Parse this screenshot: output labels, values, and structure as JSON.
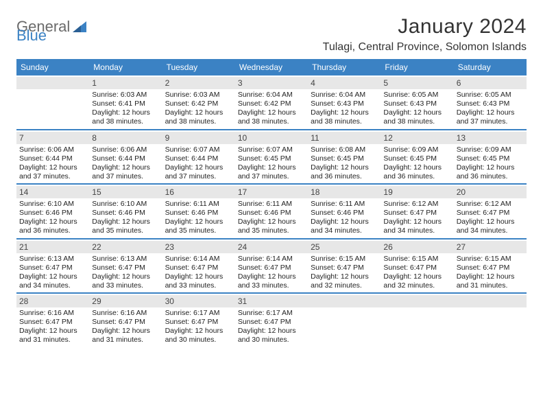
{
  "branding": {
    "logo_word1": "General",
    "logo_word2": "Blue",
    "logo_color_gray": "#6a6a6a",
    "logo_color_blue": "#3b82c4"
  },
  "title": "January 2024",
  "location": "Tulagi, Central Province, Solomon Islands",
  "colors": {
    "header_bg": "#3b82c4",
    "header_text": "#ffffff",
    "daynum_bg": "#e7e7e7",
    "row_border": "#3b82c4",
    "page_bg": "#ffffff",
    "body_text": "#222222"
  },
  "typography": {
    "title_fontsize": 30,
    "location_fontsize": 16,
    "weekday_fontsize": 12,
    "daynum_fontsize": 12,
    "cell_fontsize": 10.5
  },
  "weekday_labels": [
    "Sunday",
    "Monday",
    "Tuesday",
    "Wednesday",
    "Thursday",
    "Friday",
    "Saturday"
  ],
  "weeks": [
    [
      {
        "day": "",
        "sunrise": "",
        "sunset": "",
        "daylight1": "",
        "daylight2": ""
      },
      {
        "day": "1",
        "sunrise": "Sunrise: 6:03 AM",
        "sunset": "Sunset: 6:41 PM",
        "daylight1": "Daylight: 12 hours",
        "daylight2": "and 38 minutes."
      },
      {
        "day": "2",
        "sunrise": "Sunrise: 6:03 AM",
        "sunset": "Sunset: 6:42 PM",
        "daylight1": "Daylight: 12 hours",
        "daylight2": "and 38 minutes."
      },
      {
        "day": "3",
        "sunrise": "Sunrise: 6:04 AM",
        "sunset": "Sunset: 6:42 PM",
        "daylight1": "Daylight: 12 hours",
        "daylight2": "and 38 minutes."
      },
      {
        "day": "4",
        "sunrise": "Sunrise: 6:04 AM",
        "sunset": "Sunset: 6:43 PM",
        "daylight1": "Daylight: 12 hours",
        "daylight2": "and 38 minutes."
      },
      {
        "day": "5",
        "sunrise": "Sunrise: 6:05 AM",
        "sunset": "Sunset: 6:43 PM",
        "daylight1": "Daylight: 12 hours",
        "daylight2": "and 38 minutes."
      },
      {
        "day": "6",
        "sunrise": "Sunrise: 6:05 AM",
        "sunset": "Sunset: 6:43 PM",
        "daylight1": "Daylight: 12 hours",
        "daylight2": "and 37 minutes."
      }
    ],
    [
      {
        "day": "7",
        "sunrise": "Sunrise: 6:06 AM",
        "sunset": "Sunset: 6:44 PM",
        "daylight1": "Daylight: 12 hours",
        "daylight2": "and 37 minutes."
      },
      {
        "day": "8",
        "sunrise": "Sunrise: 6:06 AM",
        "sunset": "Sunset: 6:44 PM",
        "daylight1": "Daylight: 12 hours",
        "daylight2": "and 37 minutes."
      },
      {
        "day": "9",
        "sunrise": "Sunrise: 6:07 AM",
        "sunset": "Sunset: 6:44 PM",
        "daylight1": "Daylight: 12 hours",
        "daylight2": "and 37 minutes."
      },
      {
        "day": "10",
        "sunrise": "Sunrise: 6:07 AM",
        "sunset": "Sunset: 6:45 PM",
        "daylight1": "Daylight: 12 hours",
        "daylight2": "and 37 minutes."
      },
      {
        "day": "11",
        "sunrise": "Sunrise: 6:08 AM",
        "sunset": "Sunset: 6:45 PM",
        "daylight1": "Daylight: 12 hours",
        "daylight2": "and 36 minutes."
      },
      {
        "day": "12",
        "sunrise": "Sunrise: 6:09 AM",
        "sunset": "Sunset: 6:45 PM",
        "daylight1": "Daylight: 12 hours",
        "daylight2": "and 36 minutes."
      },
      {
        "day": "13",
        "sunrise": "Sunrise: 6:09 AM",
        "sunset": "Sunset: 6:45 PM",
        "daylight1": "Daylight: 12 hours",
        "daylight2": "and 36 minutes."
      }
    ],
    [
      {
        "day": "14",
        "sunrise": "Sunrise: 6:10 AM",
        "sunset": "Sunset: 6:46 PM",
        "daylight1": "Daylight: 12 hours",
        "daylight2": "and 36 minutes."
      },
      {
        "day": "15",
        "sunrise": "Sunrise: 6:10 AM",
        "sunset": "Sunset: 6:46 PM",
        "daylight1": "Daylight: 12 hours",
        "daylight2": "and 35 minutes."
      },
      {
        "day": "16",
        "sunrise": "Sunrise: 6:11 AM",
        "sunset": "Sunset: 6:46 PM",
        "daylight1": "Daylight: 12 hours",
        "daylight2": "and 35 minutes."
      },
      {
        "day": "17",
        "sunrise": "Sunrise: 6:11 AM",
        "sunset": "Sunset: 6:46 PM",
        "daylight1": "Daylight: 12 hours",
        "daylight2": "and 35 minutes."
      },
      {
        "day": "18",
        "sunrise": "Sunrise: 6:11 AM",
        "sunset": "Sunset: 6:46 PM",
        "daylight1": "Daylight: 12 hours",
        "daylight2": "and 34 minutes."
      },
      {
        "day": "19",
        "sunrise": "Sunrise: 6:12 AM",
        "sunset": "Sunset: 6:47 PM",
        "daylight1": "Daylight: 12 hours",
        "daylight2": "and 34 minutes."
      },
      {
        "day": "20",
        "sunrise": "Sunrise: 6:12 AM",
        "sunset": "Sunset: 6:47 PM",
        "daylight1": "Daylight: 12 hours",
        "daylight2": "and 34 minutes."
      }
    ],
    [
      {
        "day": "21",
        "sunrise": "Sunrise: 6:13 AM",
        "sunset": "Sunset: 6:47 PM",
        "daylight1": "Daylight: 12 hours",
        "daylight2": "and 34 minutes."
      },
      {
        "day": "22",
        "sunrise": "Sunrise: 6:13 AM",
        "sunset": "Sunset: 6:47 PM",
        "daylight1": "Daylight: 12 hours",
        "daylight2": "and 33 minutes."
      },
      {
        "day": "23",
        "sunrise": "Sunrise: 6:14 AM",
        "sunset": "Sunset: 6:47 PM",
        "daylight1": "Daylight: 12 hours",
        "daylight2": "and 33 minutes."
      },
      {
        "day": "24",
        "sunrise": "Sunrise: 6:14 AM",
        "sunset": "Sunset: 6:47 PM",
        "daylight1": "Daylight: 12 hours",
        "daylight2": "and 33 minutes."
      },
      {
        "day": "25",
        "sunrise": "Sunrise: 6:15 AM",
        "sunset": "Sunset: 6:47 PM",
        "daylight1": "Daylight: 12 hours",
        "daylight2": "and 32 minutes."
      },
      {
        "day": "26",
        "sunrise": "Sunrise: 6:15 AM",
        "sunset": "Sunset: 6:47 PM",
        "daylight1": "Daylight: 12 hours",
        "daylight2": "and 32 minutes."
      },
      {
        "day": "27",
        "sunrise": "Sunrise: 6:15 AM",
        "sunset": "Sunset: 6:47 PM",
        "daylight1": "Daylight: 12 hours",
        "daylight2": "and 31 minutes."
      }
    ],
    [
      {
        "day": "28",
        "sunrise": "Sunrise: 6:16 AM",
        "sunset": "Sunset: 6:47 PM",
        "daylight1": "Daylight: 12 hours",
        "daylight2": "and 31 minutes."
      },
      {
        "day": "29",
        "sunrise": "Sunrise: 6:16 AM",
        "sunset": "Sunset: 6:47 PM",
        "daylight1": "Daylight: 12 hours",
        "daylight2": "and 31 minutes."
      },
      {
        "day": "30",
        "sunrise": "Sunrise: 6:17 AM",
        "sunset": "Sunset: 6:47 PM",
        "daylight1": "Daylight: 12 hours",
        "daylight2": "and 30 minutes."
      },
      {
        "day": "31",
        "sunrise": "Sunrise: 6:17 AM",
        "sunset": "Sunset: 6:47 PM",
        "daylight1": "Daylight: 12 hours",
        "daylight2": "and 30 minutes."
      },
      {
        "day": "",
        "sunrise": "",
        "sunset": "",
        "daylight1": "",
        "daylight2": ""
      },
      {
        "day": "",
        "sunrise": "",
        "sunset": "",
        "daylight1": "",
        "daylight2": ""
      },
      {
        "day": "",
        "sunrise": "",
        "sunset": "",
        "daylight1": "",
        "daylight2": ""
      }
    ]
  ]
}
